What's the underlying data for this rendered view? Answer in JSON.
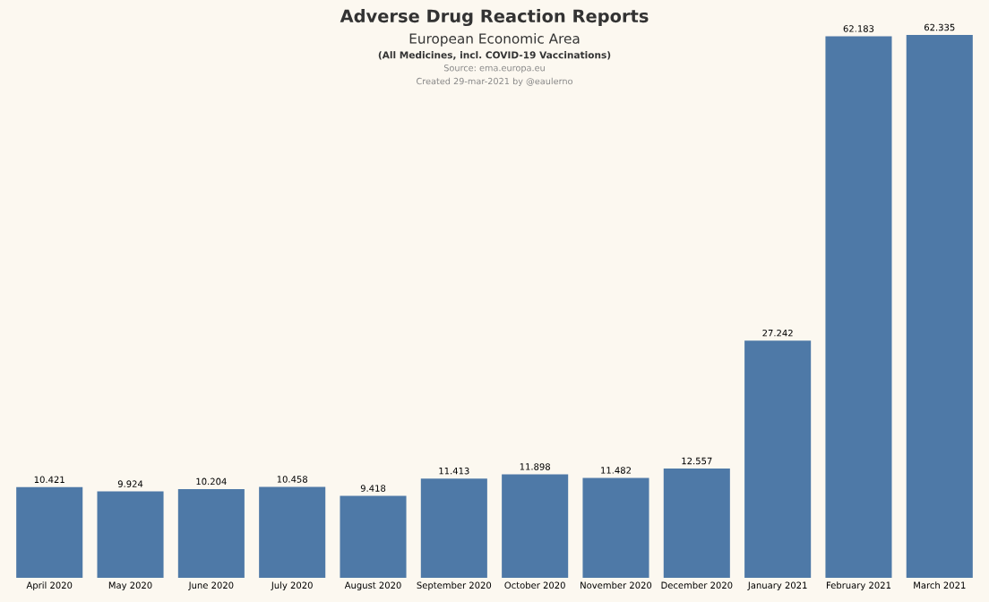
{
  "chart_data": {
    "type": "bar",
    "title": "Adverse Drug Reaction Reports",
    "subtitle": "European Economic Area",
    "annotations": [
      "(All Medicines, incl. COVID-19 Vaccinations)",
      "Source: ema.europa.eu",
      "Created 29-mar-2021 by @eaulerno"
    ],
    "categories": [
      "April 2020",
      "May 2020",
      "June 2020",
      "July 2020",
      "August 2020",
      "September 2020",
      "October 2020",
      "November 2020",
      "December 2020",
      "January 2021",
      "February 2021",
      "March 2021"
    ],
    "values": [
      10421,
      9924,
      10204,
      10458,
      9418,
      11413,
      11898,
      11482,
      12557,
      27242,
      62183,
      62335
    ],
    "value_labels": [
      "10.421",
      "9.924",
      "10.204",
      "10.458",
      "9.418",
      "11.413",
      "11.898",
      "11.482",
      "12.557",
      "27.242",
      "62.183",
      "62.335"
    ],
    "color": "#4e79a7",
    "tick_labels": "x",
    "grid": false,
    "legend": false
  }
}
